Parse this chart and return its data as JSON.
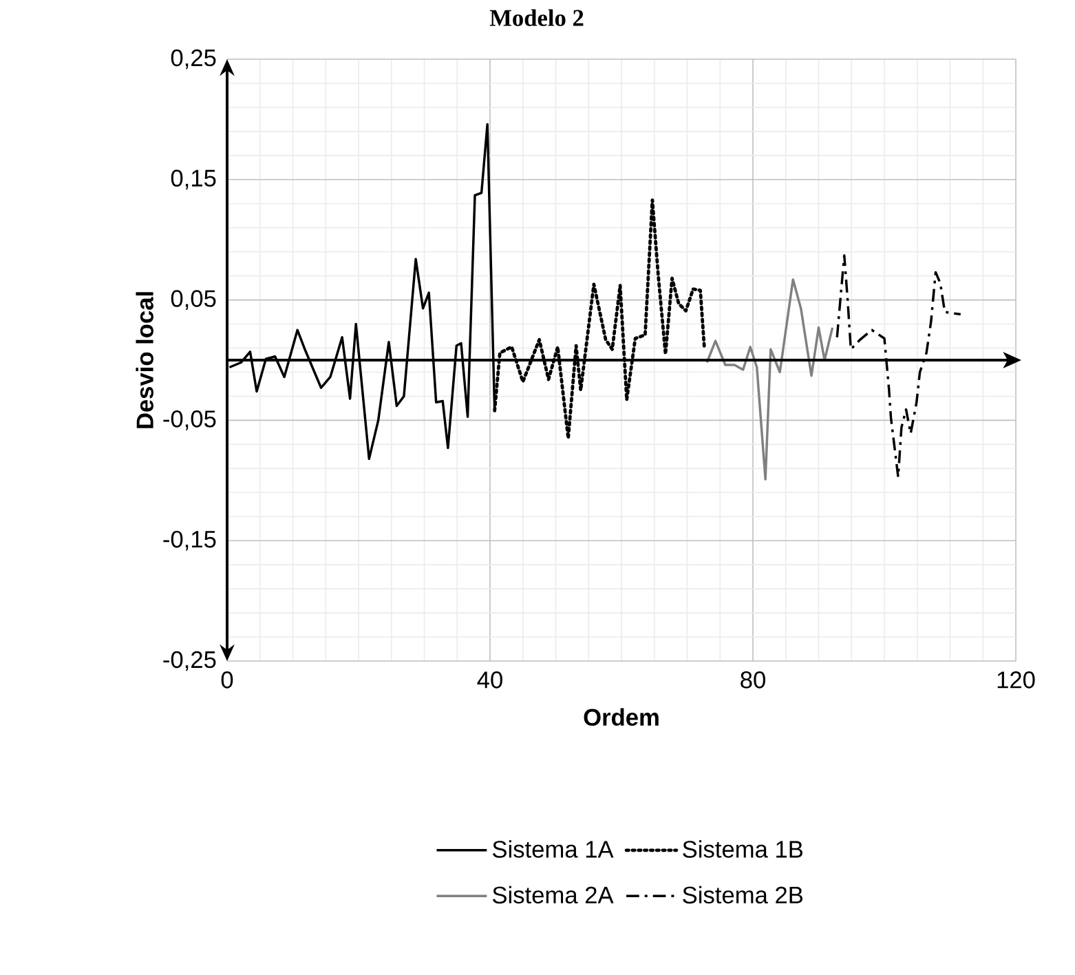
{
  "chart_data": {
    "type": "line",
    "title": "Modelo 2",
    "xlabel": "Ordem",
    "ylabel": "Desvio local",
    "xlim": [
      0,
      120
    ],
    "xticks": [
      0,
      40,
      80,
      120
    ],
    "ylim": [
      -0.25,
      0.25
    ],
    "yticks": [
      {
        "value": -0.25,
        "label": "-0,25"
      },
      {
        "value": -0.15,
        "label": "-0,15"
      },
      {
        "value": -0.05,
        "label": "-0,05"
      },
      {
        "value": 0.05,
        "label": "0,05"
      },
      {
        "value": 0.15,
        "label": "0,15"
      },
      {
        "value": 0.25,
        "label": "0,25"
      }
    ],
    "grid": true,
    "legend": "bottom",
    "series": [
      {
        "name": "Sistema 1A",
        "color": "#000000",
        "line_style": "solid",
        "x": [
          0.35,
          2.1,
          3.5,
          4.5,
          5.9,
          7.3,
          8.7,
          10.7,
          11.9,
          14.3,
          15.7,
          17.5,
          18.7,
          19.6,
          21.6,
          23.0,
          24.6,
          25.8,
          26.9,
          28.7,
          29.8,
          30.7,
          31.8,
          32.8,
          33.6,
          34.9,
          35.6,
          36.6,
          37.7,
          38.7,
          39.6,
          40.7
        ],
        "values": [
          -0.006,
          -0.002,
          0.007,
          -0.026,
          0.001,
          0.003,
          -0.014,
          0.025,
          0.008,
          -0.023,
          -0.014,
          0.019,
          -0.032,
          0.03,
          -0.082,
          -0.05,
          0.015,
          -0.038,
          -0.03,
          0.084,
          0.043,
          0.056,
          -0.035,
          -0.034,
          -0.073,
          0.012,
          0.014,
          -0.047,
          0.137,
          0.139,
          0.196,
          -0.042
        ]
      },
      {
        "name": "Sistema 1B",
        "color": "#000000",
        "line_style": "dotted",
        "x": [
          40.7,
          41.5,
          43.3,
          45.0,
          47.5,
          48.9,
          50.3,
          51.9,
          53.1,
          53.8,
          55.8,
          57.6,
          58.6,
          59.8,
          60.8,
          62.1,
          63.6,
          64.7,
          65.6,
          66.7,
          67.7,
          68.7,
          69.8,
          70.9,
          72.0,
          72.6
        ],
        "values": [
          -0.042,
          0.006,
          0.011,
          -0.018,
          0.017,
          -0.016,
          0.011,
          -0.065,
          0.012,
          -0.025,
          0.063,
          0.017,
          0.009,
          0.062,
          -0.033,
          0.018,
          0.021,
          0.133,
          0.07,
          0.005,
          0.068,
          0.047,
          0.041,
          0.059,
          0.058,
          0.011
        ]
      },
      {
        "name": "Sistema 2A",
        "color": "#808080",
        "line_style": "solid",
        "x": [
          73.0,
          74.3,
          75.8,
          77.2,
          78.5,
          79.6,
          80.6,
          81.9,
          82.7,
          84.1,
          86.1,
          87.3,
          88.9,
          90.0,
          90.9,
          92.1
        ],
        "values": [
          -0.002,
          0.016,
          -0.004,
          -0.004,
          -0.008,
          0.011,
          -0.006,
          -0.099,
          0.009,
          -0.01,
          0.067,
          0.043,
          -0.013,
          0.027,
          0.0,
          0.027
        ]
      },
      {
        "name": "Sistema 2B",
        "color": "#000000",
        "line_style": "dashdot",
        "x": [
          92.8,
          93.9,
          94.4,
          94.9,
          96.3,
          98.1,
          100.0,
          100.7,
          101.0,
          102.1,
          102.6,
          103.3,
          104.0,
          104.9,
          105.4,
          106.4,
          107.1,
          107.8,
          108.5,
          109.2,
          111.6
        ],
        "values": [
          0.019,
          0.087,
          0.051,
          0.009,
          0.017,
          0.025,
          0.018,
          -0.024,
          -0.048,
          -0.097,
          -0.056,
          -0.041,
          -0.061,
          -0.035,
          -0.01,
          0.006,
          0.032,
          0.073,
          0.064,
          0.04,
          0.038
        ]
      }
    ]
  }
}
